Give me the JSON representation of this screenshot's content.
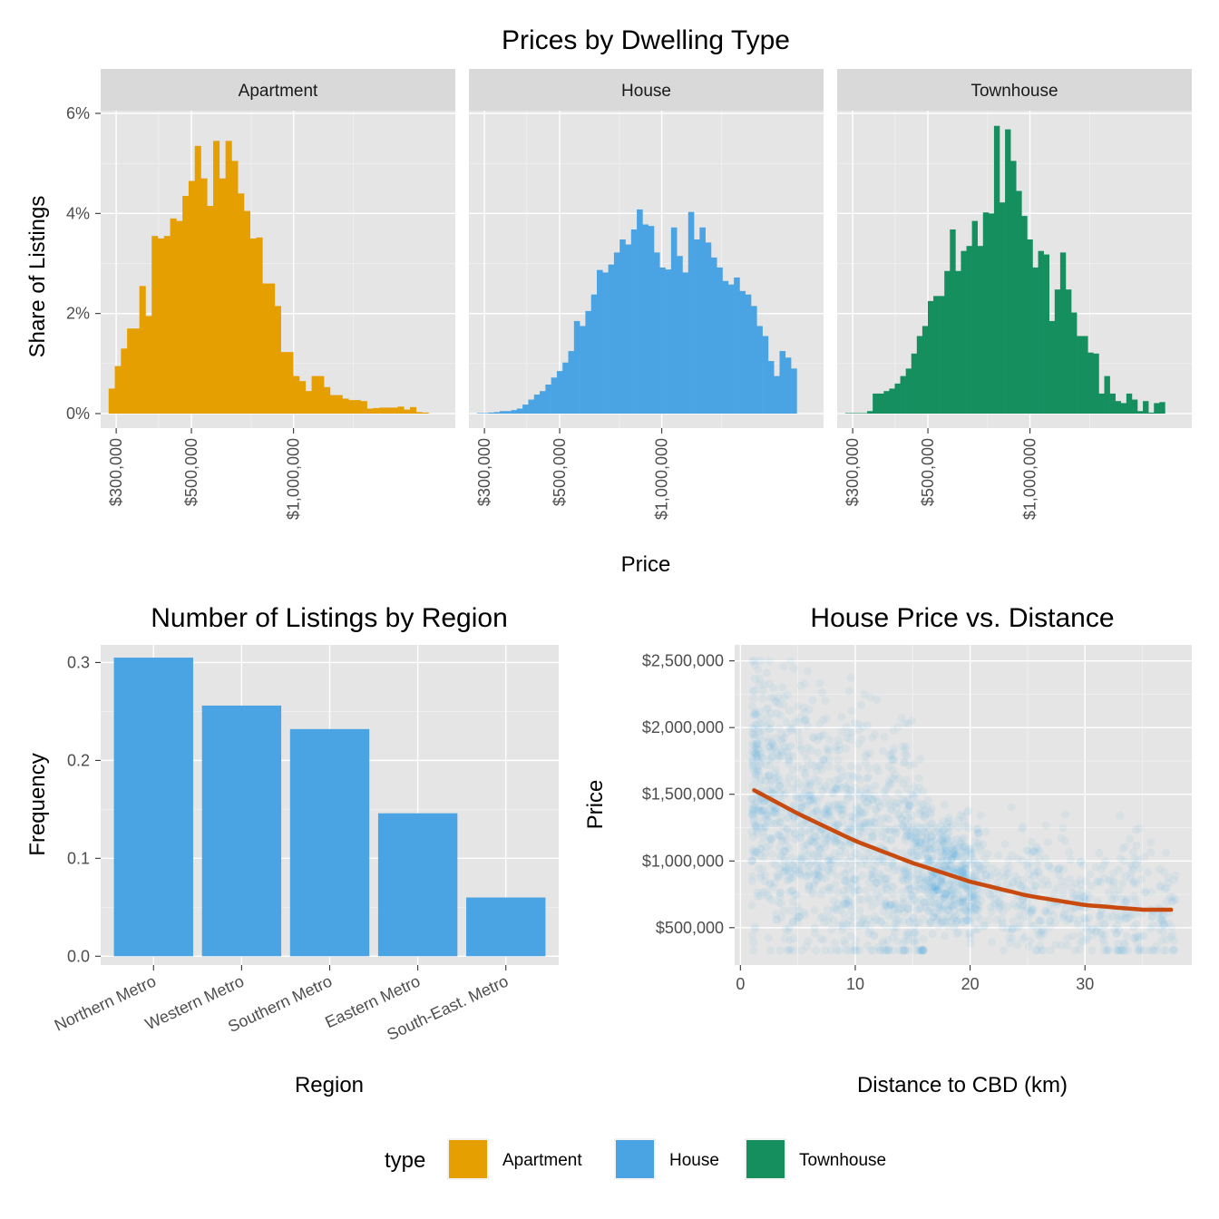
{
  "chart_data": [
    {
      "id": "prices_by_type",
      "type": "bar",
      "subtype": "faceted-histogram",
      "title": "Prices by Dwelling Type",
      "xlabel": "Price",
      "ylabel": "Share of Listings",
      "x_scale": "log",
      "xlim": [
        270000,
        3000000
      ],
      "ylim": [
        0,
        0.06
      ],
      "x_ticks": [
        300000,
        500000,
        1000000
      ],
      "x_tick_labels": [
        "$300,000",
        "$500,000",
        "$1,000,000"
      ],
      "y_ticks": [
        0,
        0.02,
        0.04,
        0.06
      ],
      "y_tick_labels": [
        "0%",
        "2%",
        "4%",
        "6%"
      ],
      "grid": true,
      "bin_range": [
        285000,
        2500000
      ],
      "facets": [
        {
          "name": "Apartment",
          "color": "#E69F00",
          "values": [
            0.005,
            0.0095,
            0.013,
            0.017,
            0.017,
            0.0255,
            0.0195,
            0.0355,
            0.035,
            0.0355,
            0.039,
            0.0385,
            0.0435,
            0.0465,
            0.0535,
            0.047,
            0.0415,
            0.0545,
            0.047,
            0.0545,
            0.0505,
            0.044,
            0.0405,
            0.035,
            0.0352,
            0.026,
            0.026,
            0.0215,
            0.0123,
            0.0123,
            0.0075,
            0.0065,
            0.0045,
            0.0075,
            0.0075,
            0.0053,
            0.0037,
            0.0037,
            0.003,
            0.0027,
            0.0027,
            0.0025,
            0.001,
            0.0011,
            0.0012,
            0.0012,
            0.0012,
            0.0014,
            0.0008,
            0.0013,
            0.0003,
            0.0002
          ]
        },
        {
          "name": "House",
          "color": "#4AA4E4",
          "values": [
            0.0001,
            0.0001,
            0.0002,
            0.0003,
            0.0005,
            0.0005,
            0.0007,
            0.001,
            0.0018,
            0.0028,
            0.0038,
            0.0045,
            0.0058,
            0.0072,
            0.0085,
            0.0102,
            0.0125,
            0.0185,
            0.0175,
            0.0205,
            0.0238,
            0.0287,
            0.0282,
            0.0298,
            0.0322,
            0.0348,
            0.0338,
            0.0368,
            0.0408,
            0.0378,
            0.0375,
            0.0322,
            0.0292,
            0.0288,
            0.0372,
            0.0315,
            0.0282,
            0.0403,
            0.0348,
            0.0372,
            0.0342,
            0.0312,
            0.0292,
            0.0265,
            0.0258,
            0.0272,
            0.0245,
            0.0238,
            0.0215,
            0.0175,
            0.0155,
            0.0105,
            0.0075,
            0.0125,
            0.0112,
            0.009
          ]
        },
        {
          "name": "Townhouse",
          "color": "#168F5F",
          "values": [
            0.0001,
            0.0001,
            0.0001,
            0.0001,
            0.0005,
            0.004,
            0.004,
            0.0045,
            0.005,
            0.006,
            0.0075,
            0.009,
            0.012,
            0.0155,
            0.0175,
            0.0225,
            0.0235,
            0.0235,
            0.0285,
            0.0368,
            0.0285,
            0.0325,
            0.0335,
            0.0385,
            0.0335,
            0.0402,
            0.04,
            0.0575,
            0.0422,
            0.0568,
            0.0505,
            0.0445,
            0.0395,
            0.0348,
            0.0292,
            0.0325,
            0.0318,
            0.0185,
            0.0248,
            0.0322,
            0.0248,
            0.0202,
            0.0155,
            0.0155,
            0.0122,
            0.012,
            0.004,
            0.0075,
            0.004,
            0.0025,
            0.0021,
            0.004,
            0.0028,
            0.0005,
            0.0025,
            0.0002,
            0.0021,
            0.0023
          ]
        }
      ]
    },
    {
      "id": "listings_by_region",
      "type": "bar",
      "title": "Number of Listings by Region",
      "xlabel": "Region",
      "ylabel": "Frequency",
      "categories": [
        "Northern Metro",
        "Western Metro",
        "Southern Metro",
        "Eastern Metro",
        "South-East. Metro"
      ],
      "values": [
        0.305,
        0.256,
        0.232,
        0.146,
        0.06
      ],
      "color": "#4AA4E4",
      "ylim": [
        -0.009,
        0.318
      ],
      "y_ticks": [
        0.0,
        0.1,
        0.2,
        0.3
      ],
      "y_tick_labels": [
        "0.0",
        "0.1",
        "0.2",
        "0.3"
      ],
      "grid": true
    },
    {
      "id": "house_price_vs_distance",
      "type": "scatter",
      "title": "House Price vs. Distance",
      "xlabel": "Distance to CBD (km)",
      "ylabel": "Price",
      "xlim": [
        -0.5,
        39.3
      ],
      "ylim": [
        220000,
        2620000
      ],
      "x_ticks": [
        0,
        10,
        20,
        30
      ],
      "x_tick_labels": [
        "0",
        "10",
        "20",
        "30"
      ],
      "y_ticks": [
        500000,
        1000000,
        1500000,
        2000000,
        2500000
      ],
      "y_tick_labels": [
        "$500,000",
        "$1,000,000",
        "$1,500,000",
        "$2,000,000",
        "$2,500,000"
      ],
      "point_color": "#4AA4E4",
      "point_alpha": 0.07,
      "trend": {
        "color": "#C84A0E",
        "x": [
          1.2,
          5,
          10,
          15,
          20,
          25,
          30,
          35,
          37.5
        ],
        "y": [
          1530000,
          1355000,
          1150000,
          985000,
          845000,
          740000,
          670000,
          635000,
          635000
        ]
      },
      "grid": true
    }
  ],
  "legend": {
    "title": "type",
    "position": "bottom",
    "items": [
      {
        "label": "Apartment",
        "color": "#E69F00"
      },
      {
        "label": "House",
        "color": "#4AA4E4"
      },
      {
        "label": "Townhouse",
        "color": "#168F5F"
      }
    ]
  }
}
